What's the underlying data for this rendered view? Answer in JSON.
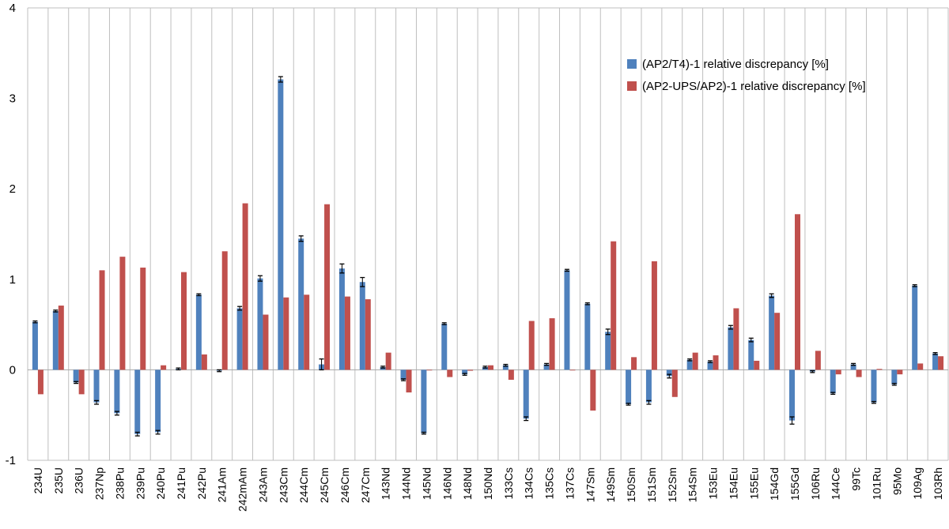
{
  "chart_data": {
    "type": "bar",
    "grid": true,
    "ylim": [
      -1,
      4
    ],
    "yticks": [
      "-1",
      "0",
      "1",
      "2",
      "3",
      "4"
    ],
    "legend_position": "top-right",
    "categories": [
      "234U",
      "235U",
      "236U",
      "237Np",
      "238Pu",
      "239Pu",
      "240Pu",
      "241Pu",
      "242Pu",
      "241Am",
      "242mAm",
      "243Am",
      "243Cm",
      "244Cm",
      "245Cm",
      "246Cm",
      "247Cm",
      "143Nd",
      "144Nd",
      "145Nd",
      "146Nd",
      "148Nd",
      "150Nd",
      "133Cs",
      "134Cs",
      "135Cs",
      "137Cs",
      "147Sm",
      "149Sm",
      "150Sm",
      "151Sm",
      "152Sm",
      "154Sm",
      "153Eu",
      "154Eu",
      "155Eu",
      "154Gd",
      "155Gd",
      "106Ru",
      "144Ce",
      "99Tc",
      "101Ru",
      "95Mo",
      "109Ag",
      "103Rh"
    ],
    "series": [
      {
        "name": "(AP2/T4)-1 relative discrepancy [%]",
        "color": "#4F81BD",
        "values": [
          0.53,
          0.65,
          -0.14,
          -0.36,
          -0.48,
          -0.71,
          -0.69,
          0.01,
          0.83,
          -0.01,
          0.68,
          1.01,
          3.21,
          1.45,
          0.06,
          1.12,
          0.97,
          0.03,
          -0.11,
          -0.7,
          0.51,
          -0.05,
          0.03,
          0.05,
          -0.54,
          0.06,
          1.1,
          0.73,
          0.42,
          -0.38,
          -0.36,
          -0.07,
          0.11,
          0.09,
          0.47,
          0.33,
          0.82,
          -0.56,
          -0.02,
          -0.26,
          0.06,
          -0.36,
          -0.16,
          0.93,
          0.18
        ],
        "errors": [
          0.01,
          0.01,
          0.01,
          0.02,
          0.02,
          0.02,
          0.02,
          0.01,
          0.01,
          0.01,
          0.02,
          0.03,
          0.03,
          0.03,
          0.06,
          0.05,
          0.05,
          0.01,
          0.01,
          0.01,
          0.01,
          0.01,
          0.01,
          0.01,
          0.02,
          0.01,
          0.01,
          0.01,
          0.03,
          0.01,
          0.02,
          0.02,
          0.01,
          0.01,
          0.02,
          0.02,
          0.02,
          0.04,
          0.01,
          0.01,
          0.01,
          0.01,
          0.01,
          0.01,
          0.01
        ]
      },
      {
        "name": "(AP2-UPS/AP2)-1 relative discrepancy [%]",
        "color": "#C0504D",
        "values": [
          -0.27,
          0.71,
          -0.27,
          1.1,
          1.25,
          1.13,
          0.05,
          1.08,
          0.17,
          1.31,
          1.84,
          0.61,
          0.8,
          0.83,
          1.83,
          0.81,
          0.78,
          0.19,
          -0.25,
          0.0,
          -0.08,
          -0.01,
          0.05,
          -0.11,
          0.54,
          0.57,
          0.0,
          -0.45,
          1.42,
          0.14,
          1.2,
          -0.3,
          0.19,
          0.16,
          0.68,
          0.1,
          0.63,
          1.72,
          0.21,
          -0.05,
          -0.08,
          0.01,
          -0.05,
          0.07,
          0.15
        ]
      }
    ]
  }
}
